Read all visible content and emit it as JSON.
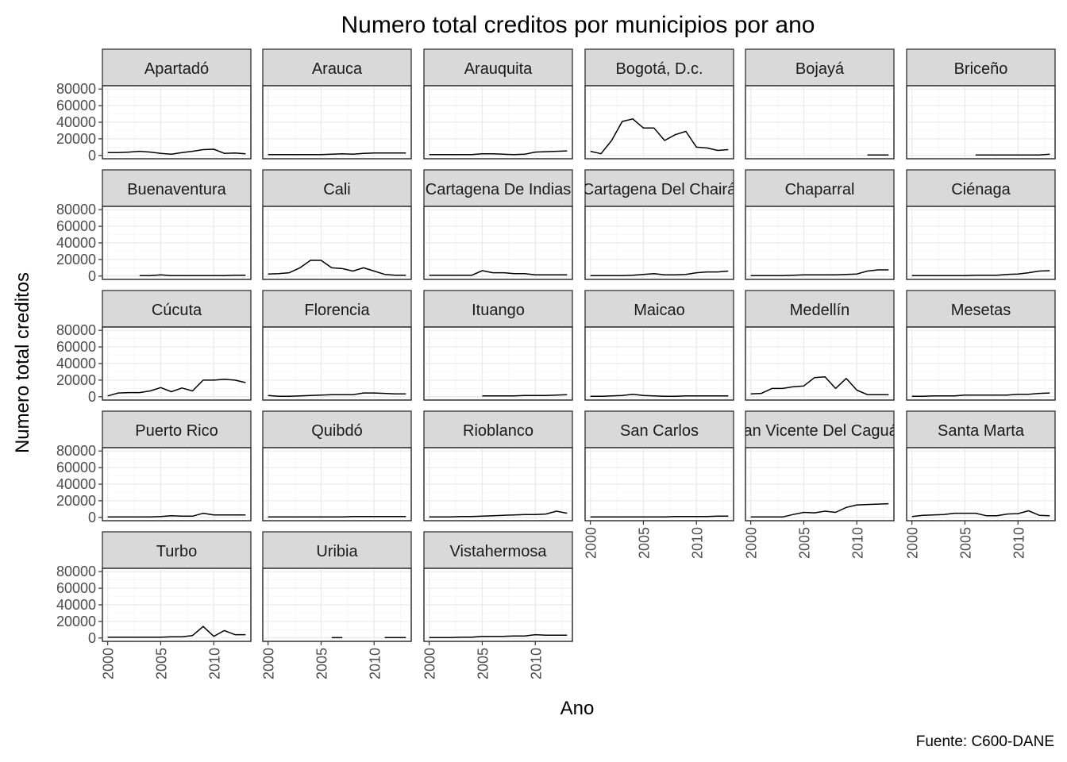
{
  "chart_data": {
    "type": "line",
    "title": "Numero total creditos por municipios por ano",
    "xlabel": "Ano",
    "ylabel": "Numero total creditos",
    "caption": "Fuente: C600-DANE",
    "xlim": [
      1999.5,
      2013.5
    ],
    "ylim": [
      -4000,
      84000
    ],
    "x_ticks": [
      2000,
      2005,
      2010
    ],
    "y_ticks": [
      0,
      20000,
      40000,
      60000,
      80000
    ],
    "grid": true,
    "ncol": 6,
    "panels": [
      {
        "name": "Apartadó",
        "x": [
          2000,
          2001,
          2002,
          2003,
          2004,
          2005,
          2006,
          2007,
          2008,
          2009,
          2010,
          2011,
          2012,
          2013
        ],
        "values": [
          3500,
          3500,
          4000,
          5000,
          4000,
          2500,
          1500,
          3500,
          5000,
          7000,
          7500,
          2500,
          3000,
          2000
        ]
      },
      {
        "name": "Arauca",
        "x": [
          2000,
          2001,
          2002,
          2003,
          2004,
          2005,
          2006,
          2007,
          2008,
          2009,
          2010,
          2011,
          2012,
          2013
        ],
        "values": [
          1000,
          1000,
          1000,
          1000,
          1000,
          1000,
          1500,
          2000,
          1500,
          2500,
          3000,
          3000,
          3000,
          3000
        ]
      },
      {
        "name": "Arauquita",
        "x": [
          2000,
          2001,
          2002,
          2003,
          2004,
          2005,
          2006,
          2007,
          2008,
          2009,
          2010,
          2011,
          2012,
          2013
        ],
        "values": [
          1000,
          1000,
          1000,
          1000,
          1000,
          2000,
          2000,
          1500,
          1000,
          1500,
          4000,
          4500,
          5000,
          5500
        ]
      },
      {
        "name": "Bogotá, D.c.",
        "x": [
          2000,
          2001,
          2002,
          2003,
          2004,
          2005,
          2006,
          2007,
          2008,
          2009,
          2010,
          2011,
          2012,
          2013
        ],
        "values": [
          5000,
          2000,
          18000,
          41000,
          44000,
          33000,
          33000,
          18000,
          25000,
          29000,
          10000,
          9000,
          6000,
          7000
        ]
      },
      {
        "name": "Bojayá",
        "x": [
          2011,
          2012,
          2013
        ],
        "values": [
          500,
          500,
          500
        ]
      },
      {
        "name": "Briceño",
        "x": [
          2006,
          2007,
          2008,
          2009,
          2010,
          2011,
          2012,
          2013
        ],
        "values": [
          500,
          500,
          500,
          500,
          500,
          500,
          500,
          1500
        ]
      },
      {
        "name": "Buenaventura",
        "x": [
          2003,
          2004,
          2005,
          2006,
          2007,
          2008,
          2009,
          2010,
          2011,
          2012,
          2013
        ],
        "values": [
          500,
          500,
          1500,
          500,
          500,
          500,
          500,
          500,
          500,
          1000,
          1000
        ]
      },
      {
        "name": "Cali",
        "x": [
          2000,
          2001,
          2002,
          2003,
          2004,
          2005,
          2006,
          2007,
          2008,
          2009,
          2010,
          2011,
          2012,
          2013
        ],
        "values": [
          2500,
          3000,
          4000,
          10000,
          19000,
          19000,
          10000,
          9000,
          6000,
          10000,
          6000,
          2000,
          1000,
          1000
        ]
      },
      {
        "name": "Cartagena De Indias",
        "x": [
          2000,
          2001,
          2002,
          2003,
          2004,
          2005,
          2006,
          2007,
          2008,
          2009,
          2010,
          2011,
          2012,
          2013
        ],
        "values": [
          1000,
          1000,
          1000,
          1000,
          1000,
          6500,
          4000,
          4000,
          3000,
          3000,
          1500,
          1500,
          1500,
          1500
        ]
      },
      {
        "name": "Cartagena Del Chairá",
        "x": [
          2000,
          2001,
          2002,
          2003,
          2004,
          2005,
          2006,
          2007,
          2008,
          2009,
          2010,
          2011,
          2012,
          2013
        ],
        "values": [
          500,
          500,
          500,
          500,
          1000,
          2000,
          3000,
          1500,
          1500,
          2000,
          4000,
          5000,
          5000,
          6000
        ]
      },
      {
        "name": "Chaparral",
        "x": [
          2000,
          2001,
          2002,
          2003,
          2004,
          2005,
          2006,
          2007,
          2008,
          2009,
          2010,
          2011,
          2012,
          2013
        ],
        "values": [
          500,
          500,
          500,
          500,
          1000,
          1500,
          1500,
          1500,
          1500,
          2000,
          2500,
          6000,
          7500,
          7500
        ]
      },
      {
        "name": "Ciénaga",
        "x": [
          2000,
          2001,
          2002,
          2003,
          2004,
          2005,
          2006,
          2007,
          2008,
          2009,
          2010,
          2011,
          2012,
          2013
        ],
        "values": [
          500,
          500,
          500,
          500,
          500,
          500,
          1000,
          1000,
          1000,
          2000,
          2500,
          4000,
          6000,
          6500
        ]
      },
      {
        "name": "Cúcuta",
        "x": [
          2000,
          2001,
          2002,
          2003,
          2004,
          2005,
          2006,
          2007,
          2008,
          2009,
          2010,
          2011,
          2012,
          2013
        ],
        "values": [
          1000,
          4500,
          5000,
          5000,
          7000,
          11000,
          6000,
          10500,
          7000,
          20000,
          20000,
          21000,
          20000,
          17000
        ]
      },
      {
        "name": "Florencia",
        "x": [
          2000,
          2001,
          2002,
          2003,
          2004,
          2005,
          2006,
          2007,
          2008,
          2009,
          2010,
          2011,
          2012,
          2013
        ],
        "values": [
          1500,
          500,
          500,
          1000,
          1500,
          2000,
          2500,
          2500,
          2500,
          4500,
          4500,
          4000,
          3500,
          3500
        ]
      },
      {
        "name": "Ituango",
        "x": [
          2005,
          2006,
          2007,
          2008,
          2009,
          2010,
          2011,
          2012,
          2013
        ],
        "values": [
          1000,
          1000,
          1000,
          1000,
          1500,
          1500,
          1500,
          2000,
          2500
        ]
      },
      {
        "name": "Maicao",
        "x": [
          2000,
          2001,
          2002,
          2003,
          2004,
          2005,
          2006,
          2007,
          2008,
          2009,
          2010,
          2011,
          2012,
          2013
        ],
        "values": [
          500,
          500,
          1000,
          1500,
          3000,
          1500,
          1000,
          500,
          500,
          1000,
          1000,
          1000,
          1000,
          1000
        ]
      },
      {
        "name": "Medellín",
        "x": [
          2000,
          2001,
          2002,
          2003,
          2004,
          2005,
          2006,
          2007,
          2008,
          2009,
          2010,
          2011,
          2012,
          2013
        ],
        "values": [
          3500,
          4000,
          10000,
          10000,
          12000,
          13000,
          23000,
          24000,
          10000,
          22000,
          8000,
          2500,
          2500,
          2500
        ]
      },
      {
        "name": "Mesetas",
        "x": [
          2000,
          2001,
          2002,
          2003,
          2004,
          2005,
          2006,
          2007,
          2008,
          2009,
          2010,
          2011,
          2012,
          2013
        ],
        "values": [
          500,
          500,
          1000,
          1000,
          1000,
          2000,
          2000,
          2000,
          2000,
          2000,
          3000,
          3000,
          4000,
          4500
        ]
      },
      {
        "name": "Puerto Rico",
        "x": [
          2000,
          2001,
          2002,
          2003,
          2004,
          2005,
          2006,
          2007,
          2008,
          2009,
          2010,
          2011,
          2012,
          2013
        ],
        "values": [
          500,
          500,
          500,
          500,
          500,
          1000,
          2000,
          1500,
          1500,
          5000,
          3000,
          3000,
          3000,
          3000
        ]
      },
      {
        "name": "Quibdó",
        "x": [
          2000,
          2001,
          2002,
          2003,
          2004,
          2005,
          2006,
          2007,
          2008,
          2009,
          2010,
          2011,
          2012,
          2013
        ],
        "values": [
          500,
          500,
          500,
          500,
          500,
          500,
          500,
          500,
          1000,
          1000,
          1000,
          1000,
          1000,
          1000
        ]
      },
      {
        "name": "Rioblanco",
        "x": [
          2000,
          2001,
          2002,
          2003,
          2004,
          2005,
          2006,
          2007,
          2008,
          2009,
          2010,
          2011,
          2012,
          2013
        ],
        "values": [
          500,
          500,
          500,
          1000,
          1000,
          1500,
          2000,
          2500,
          3000,
          3500,
          3500,
          4000,
          7500,
          5000
        ]
      },
      {
        "name": "San Carlos",
        "x": [
          2000,
          2001,
          2002,
          2003,
          2004,
          2005,
          2006,
          2007,
          2008,
          2009,
          2010,
          2011,
          2012,
          2013
        ],
        "values": [
          500,
          500,
          500,
          500,
          500,
          500,
          500,
          500,
          1000,
          1000,
          1000,
          1000,
          1500,
          1500
        ]
      },
      {
        "name": "San Vicente Del Caguán",
        "x": [
          2000,
          2001,
          2002,
          2003,
          2004,
          2005,
          2006,
          2007,
          2008,
          2009,
          2010,
          2011,
          2012,
          2013
        ],
        "values": [
          500,
          500,
          500,
          500,
          3500,
          6000,
          5500,
          7500,
          6000,
          12000,
          15000,
          15500,
          16000,
          16500
        ]
      },
      {
        "name": "Santa Marta",
        "x": [
          2000,
          2001,
          2002,
          2003,
          2004,
          2005,
          2006,
          2007,
          2008,
          2009,
          2010,
          2011,
          2012,
          2013
        ],
        "values": [
          1000,
          2500,
          3000,
          3500,
          5000,
          5000,
          5000,
          2000,
          2000,
          4000,
          4500,
          8000,
          2500,
          2000
        ]
      },
      {
        "name": "Turbo",
        "x": [
          2000,
          2001,
          2002,
          2003,
          2004,
          2005,
          2006,
          2007,
          2008,
          2009,
          2010,
          2011,
          2012,
          2013
        ],
        "values": [
          1000,
          1000,
          1000,
          1000,
          1000,
          1000,
          1500,
          1500,
          3000,
          14000,
          2000,
          9000,
          4000,
          4000
        ]
      },
      {
        "name": "Uribia",
        "x": [
          2006,
          2007,
          2011,
          2012,
          2013
        ],
        "values": [
          500,
          500,
          500,
          500,
          500
        ],
        "breaks_after": [
          1
        ]
      },
      {
        "name": "Vistahermosa",
        "x": [
          2000,
          2001,
          2002,
          2003,
          2004,
          2005,
          2006,
          2007,
          2008,
          2009,
          2010,
          2011,
          2012,
          2013
        ],
        "values": [
          500,
          500,
          500,
          1000,
          1000,
          2000,
          2000,
          2000,
          2500,
          2500,
          4000,
          3500,
          3500,
          3500
        ]
      }
    ]
  }
}
